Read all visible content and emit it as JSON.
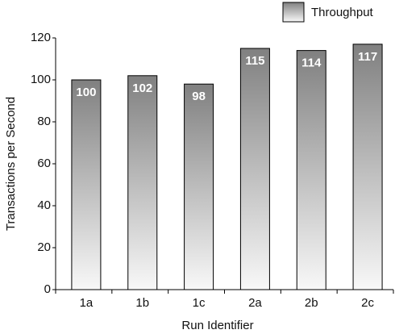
{
  "chart_data": {
    "type": "bar",
    "x_label": "Run Identifier",
    "y_label": "Transactions per Second",
    "categories": [
      "1a",
      "1b",
      "1c",
      "2a",
      "2b",
      "2c"
    ],
    "series": [
      {
        "name": "Throughput",
        "color": "#808080",
        "values": [
          100,
          102,
          98,
          115,
          114,
          117
        ]
      }
    ],
    "ylim": [
      0,
      120
    ],
    "yticks": [
      0,
      20,
      40,
      60,
      80,
      100,
      120
    ],
    "grid": false,
    "legend": "top-right"
  }
}
